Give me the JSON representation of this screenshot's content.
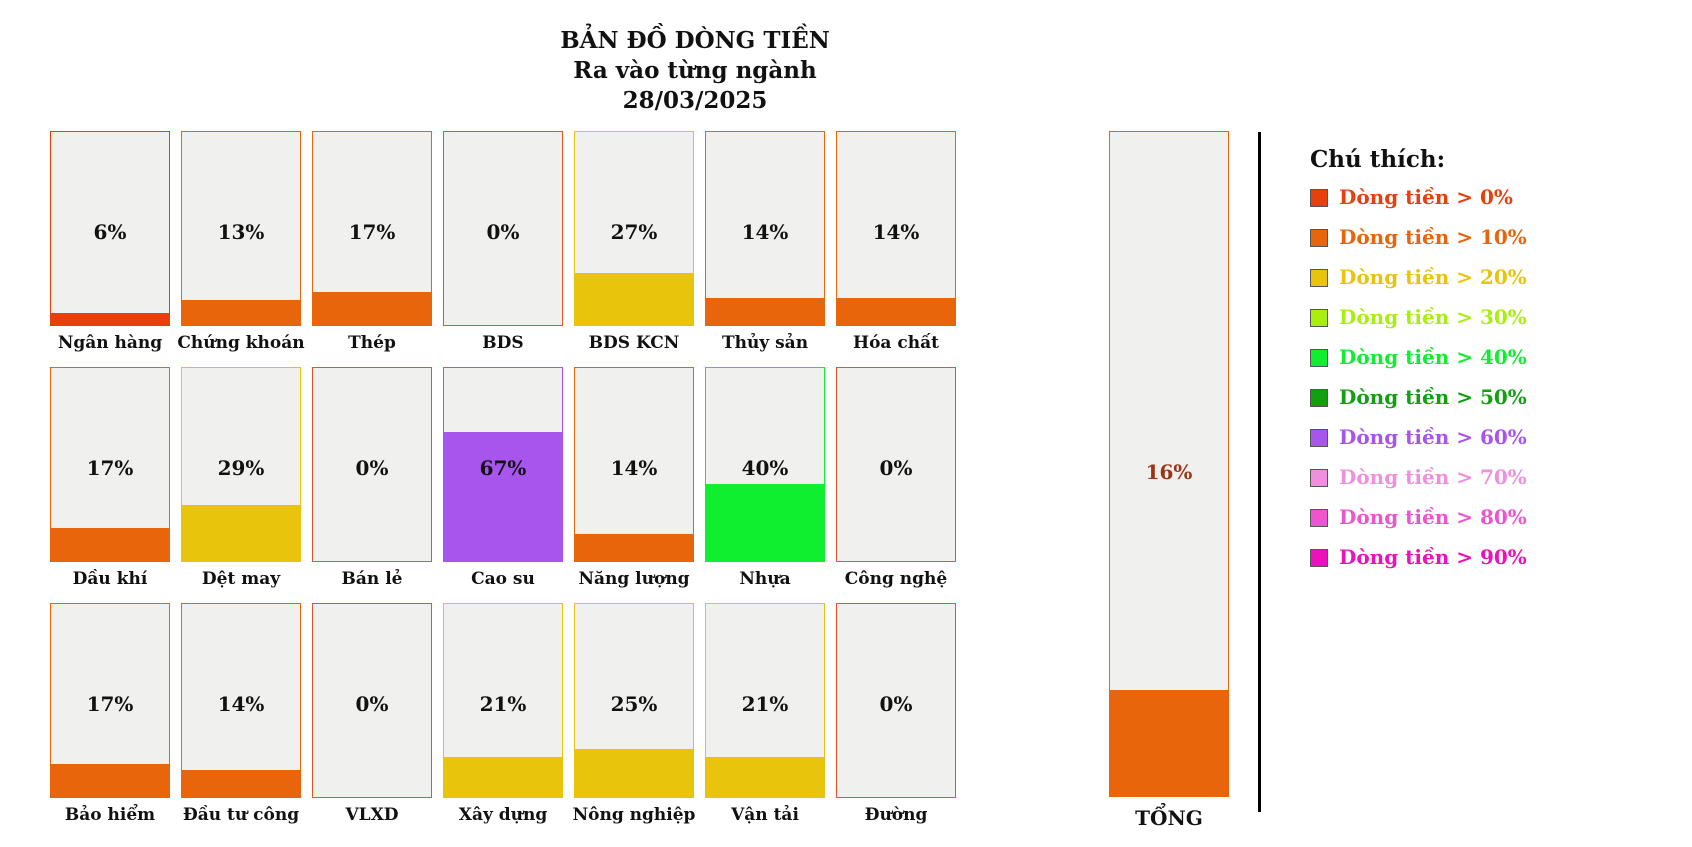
{
  "chart_data": {
    "type": "bar",
    "title": [
      "BẢN ĐỒ DÒNG TIỀN",
      "Ra vào từng ngành",
      "28/03/2025"
    ],
    "ylim": [
      0,
      100
    ],
    "unit": "%",
    "sectors": [
      {
        "name": "Ngân hàng",
        "value": 6
      },
      {
        "name": "Chứng khoán",
        "value": 13
      },
      {
        "name": "Thép",
        "value": 17
      },
      {
        "name": "BDS",
        "value": 0
      },
      {
        "name": "BDS KCN",
        "value": 27
      },
      {
        "name": "Thủy sản",
        "value": 14
      },
      {
        "name": "Hóa chất",
        "value": 14
      },
      {
        "name": "Dầu khí",
        "value": 17
      },
      {
        "name": "Dệt may",
        "value": 29
      },
      {
        "name": "Bán lẻ",
        "value": 0
      },
      {
        "name": "Cao su",
        "value": 67
      },
      {
        "name": "Năng lượng",
        "value": 14
      },
      {
        "name": "Nhựa",
        "value": 40
      },
      {
        "name": "Công nghệ",
        "value": 0
      },
      {
        "name": "Bảo hiểm",
        "value": 17
      },
      {
        "name": "Đầu tư công",
        "value": 14
      },
      {
        "name": "VLXD",
        "value": 0
      },
      {
        "name": "Xây dựng",
        "value": 21
      },
      {
        "name": "Nông nghiệp",
        "value": 25
      },
      {
        "name": "Vận tải",
        "value": 21
      },
      {
        "name": "Đường",
        "value": 0
      }
    ],
    "total": {
      "name": "TỔNG",
      "value": 16
    }
  },
  "legend": {
    "title": "Chú thích:",
    "items": [
      {
        "label": "Dòng tiền > 0%",
        "color": "#e8400c"
      },
      {
        "label": "Dòng tiền > 10%",
        "color": "#e8650c"
      },
      {
        "label": "Dòng tiền > 20%",
        "color": "#e8c40c"
      },
      {
        "label": "Dòng tiền > 30%",
        "color": "#aaee10"
      },
      {
        "label": "Dòng tiền > 40%",
        "color": "#10ee30"
      },
      {
        "label": "Dòng tiền > 50%",
        "color": "#10a010"
      },
      {
        "label": "Dòng tiền > 60%",
        "color": "#a855ee"
      },
      {
        "label": "Dòng tiền > 70%",
        "color": "#ee90dd"
      },
      {
        "label": "Dòng tiền > 80%",
        "color": "#ee55cc"
      },
      {
        "label": "Dòng tiền > 90%",
        "color": "#ee10bb"
      }
    ]
  }
}
